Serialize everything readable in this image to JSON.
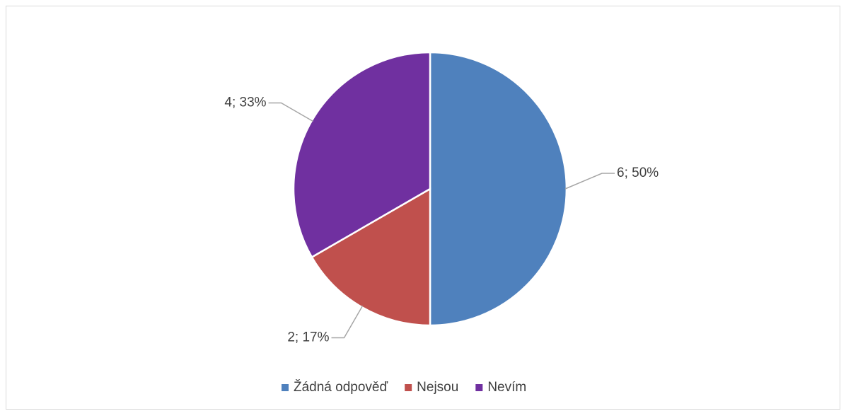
{
  "chart_data": {
    "type": "pie",
    "categories": [
      "Žádná odpověď",
      "Nejsou",
      "Nevím"
    ],
    "values": [
      6,
      2,
      4
    ],
    "value_labels": [
      "6; 50%",
      "2; 17%",
      "4; 33%"
    ],
    "colors": [
      "#4f81bd",
      "#c0504d",
      "#7030a0"
    ],
    "legend": "bottom"
  }
}
